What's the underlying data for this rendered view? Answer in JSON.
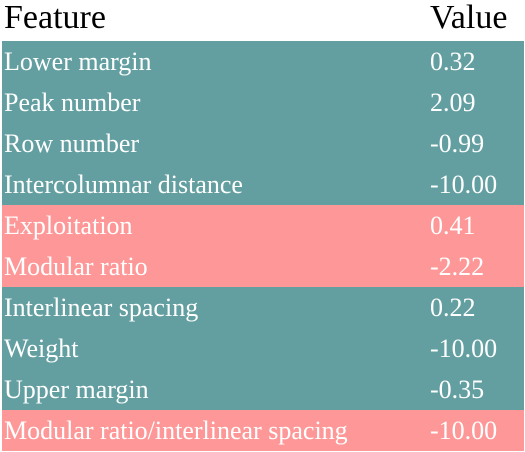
{
  "table": {
    "header": [
      "Feature",
      "Value"
    ],
    "rows": [
      {
        "cells": [
          "Lower margin",
          "0.32"
        ],
        "color": "#639fa0"
      },
      {
        "cells": [
          "Peak number",
          "2.09"
        ],
        "color": "#639fa0"
      },
      {
        "cells": [
          "Row number",
          "-0.99"
        ],
        "color": "#639fa0"
      },
      {
        "cells": [
          "Intercolumnar distance",
          "-10.00"
        ],
        "color": "#639fa0"
      },
      {
        "cells": [
          "Exploitation",
          "0.41"
        ],
        "color": "#fe9898"
      },
      {
        "cells": [
          "Modular ratio",
          "-2.22"
        ],
        "color": "#fe9898"
      },
      {
        "cells": [
          "Interlinear spacing",
          "0.22"
        ],
        "color": "#639fa0"
      },
      {
        "cells": [
          "Weight",
          "-10.00"
        ],
        "color": "#639fa0"
      },
      {
        "cells": [
          "Upper margin",
          "-0.35"
        ],
        "color": "#639fa0"
      },
      {
        "cells": [
          "Modular ratio/interlinear spacing",
          "-10.00"
        ],
        "color": "#fe9898"
      }
    ]
  }
}
